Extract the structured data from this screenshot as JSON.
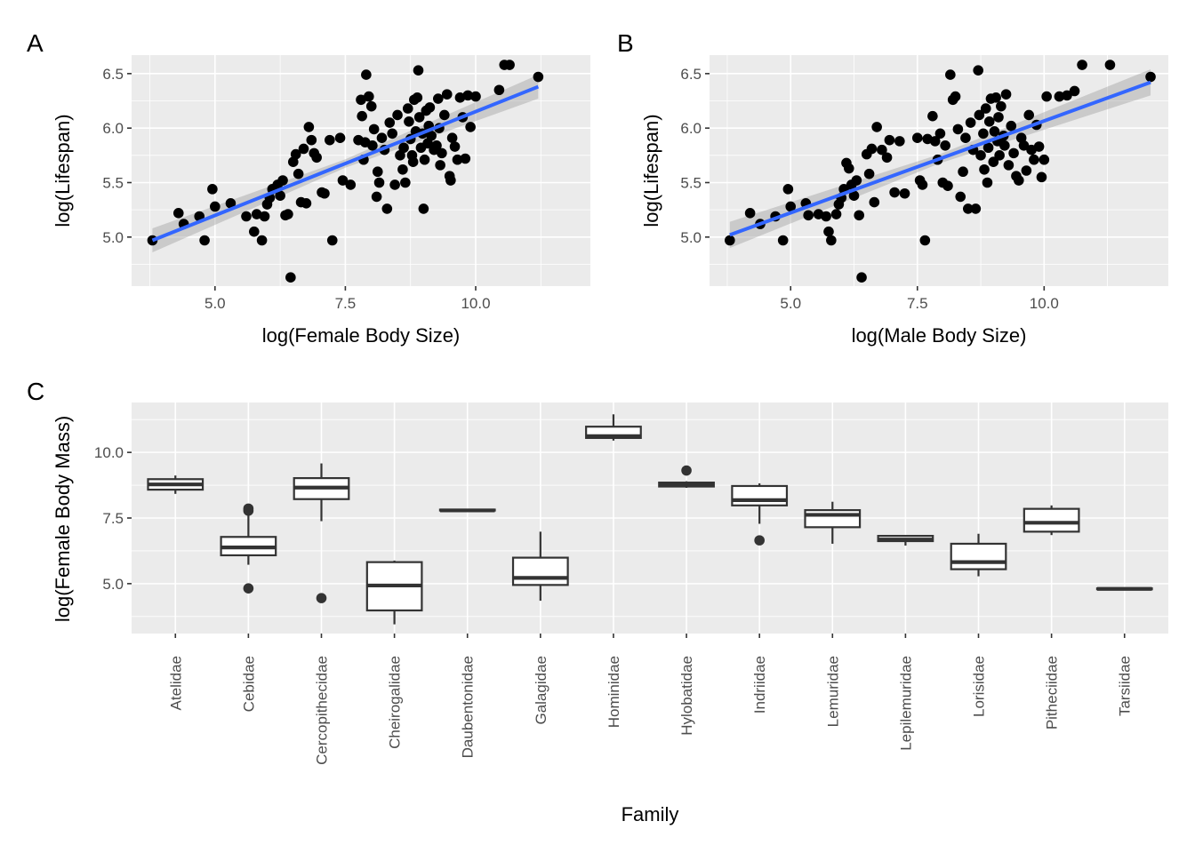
{
  "chart_data": [
    {
      "id": "A",
      "panel_tag": "A",
      "type": "scatter",
      "title": "",
      "xlabel": "log(Female Body Size)",
      "ylabel": "log(Lifespan)",
      "xlim": [
        3.4,
        12.2
      ],
      "ylim": [
        4.55,
        6.67
      ],
      "xticks": [
        5.0,
        7.5,
        10.0
      ],
      "xtick_labels": [
        "5.0",
        "7.5",
        "10.0"
      ],
      "yticks": [
        5.0,
        5.5,
        6.0,
        6.5
      ],
      "ytick_labels": [
        "5.0",
        "5.5",
        "6.0",
        "6.5"
      ],
      "grid": true,
      "fit": {
        "method": "lm",
        "x0": 3.8,
        "y0": 4.97,
        "x1": 11.2,
        "y1": 6.38,
        "se_at_ends": 0.11,
        "color": "#3366ff"
      },
      "points": [
        [
          3.8,
          4.97
        ],
        [
          4.3,
          5.22
        ],
        [
          4.4,
          5.12
        ],
        [
          4.7,
          5.19
        ],
        [
          4.8,
          4.97
        ],
        [
          4.95,
          5.44
        ],
        [
          5.0,
          5.28
        ],
        [
          5.3,
          5.31
        ],
        [
          5.6,
          5.19
        ],
        [
          5.75,
          5.05
        ],
        [
          5.8,
          5.21
        ],
        [
          5.9,
          4.97
        ],
        [
          5.95,
          5.19
        ],
        [
          6.0,
          5.3
        ],
        [
          6.05,
          5.36
        ],
        [
          6.1,
          5.44
        ],
        [
          6.2,
          5.48
        ],
        [
          6.25,
          5.38
        ],
        [
          6.3,
          5.52
        ],
        [
          6.35,
          5.2
        ],
        [
          6.4,
          5.21
        ],
        [
          6.45,
          4.63
        ],
        [
          6.5,
          5.69
        ],
        [
          6.55,
          5.76
        ],
        [
          6.6,
          5.58
        ],
        [
          6.65,
          5.32
        ],
        [
          6.7,
          5.81
        ],
        [
          6.75,
          5.31
        ],
        [
          6.8,
          6.01
        ],
        [
          6.85,
          5.89
        ],
        [
          6.9,
          5.77
        ],
        [
          6.95,
          5.73
        ],
        [
          7.05,
          5.41
        ],
        [
          7.1,
          5.4
        ],
        [
          7.2,
          5.89
        ],
        [
          7.25,
          4.97
        ],
        [
          7.4,
          5.91
        ],
        [
          7.45,
          5.52
        ],
        [
          7.6,
          5.48
        ],
        [
          7.75,
          5.89
        ],
        [
          7.8,
          6.26
        ],
        [
          7.82,
          6.11
        ],
        [
          7.85,
          5.71
        ],
        [
          7.88,
          5.87
        ],
        [
          7.9,
          6.49
        ],
        [
          7.95,
          6.29
        ],
        [
          8.0,
          6.2
        ],
        [
          8.02,
          5.84
        ],
        [
          8.05,
          5.99
        ],
        [
          8.1,
          5.37
        ],
        [
          8.12,
          5.6
        ],
        [
          8.15,
          5.5
        ],
        [
          8.2,
          5.91
        ],
        [
          8.25,
          5.8
        ],
        [
          8.3,
          5.26
        ],
        [
          8.35,
          6.05
        ],
        [
          8.4,
          5.95
        ],
        [
          8.45,
          5.48
        ],
        [
          8.5,
          6.12
        ],
        [
          8.55,
          5.75
        ],
        [
          8.6,
          5.62
        ],
        [
          8.62,
          5.82
        ],
        [
          8.65,
          5.5
        ],
        [
          8.7,
          6.18
        ],
        [
          8.72,
          6.06
        ],
        [
          8.75,
          5.9
        ],
        [
          8.78,
          5.75
        ],
        [
          8.8,
          5.69
        ],
        [
          8.82,
          6.26
        ],
        [
          8.85,
          5.97
        ],
        [
          8.88,
          6.28
        ],
        [
          8.9,
          6.53
        ],
        [
          8.92,
          6.1
        ],
        [
          8.95,
          5.82
        ],
        [
          8.98,
          5.95
        ],
        [
          9.0,
          5.26
        ],
        [
          9.02,
          5.71
        ],
        [
          9.05,
          6.16
        ],
        [
          9.08,
          5.86
        ],
        [
          9.1,
          6.02
        ],
        [
          9.12,
          6.19
        ],
        [
          9.15,
          5.93
        ],
        [
          9.2,
          5.8
        ],
        [
          9.25,
          5.84
        ],
        [
          9.28,
          6.27
        ],
        [
          9.3,
          6.0
        ],
        [
          9.32,
          5.66
        ],
        [
          9.35,
          5.77
        ],
        [
          9.4,
          6.12
        ],
        [
          9.45,
          6.31
        ],
        [
          9.5,
          5.56
        ],
        [
          9.52,
          5.52
        ],
        [
          9.55,
          5.91
        ],
        [
          9.6,
          5.83
        ],
        [
          9.65,
          5.71
        ],
        [
          9.7,
          6.28
        ],
        [
          9.75,
          6.1
        ],
        [
          9.8,
          5.72
        ],
        [
          9.85,
          6.3
        ],
        [
          9.9,
          6.01
        ],
        [
          10.0,
          6.29
        ],
        [
          10.45,
          6.35
        ],
        [
          10.55,
          6.58
        ],
        [
          10.65,
          6.58
        ],
        [
          11.2,
          6.47
        ]
      ]
    },
    {
      "id": "B",
      "panel_tag": "B",
      "type": "scatter",
      "title": "",
      "xlabel": "log(Male Body Size)",
      "ylabel": "log(Lifespan)",
      "xlim": [
        3.4,
        12.45
      ],
      "ylim": [
        4.55,
        6.67
      ],
      "xticks": [
        5.0,
        7.5,
        10.0
      ],
      "xtick_labels": [
        "5.0",
        "7.5",
        "10.0"
      ],
      "yticks": [
        5.0,
        5.5,
        6.0,
        6.5
      ],
      "ytick_labels": [
        "5.0",
        "5.5",
        "6.0",
        "6.5"
      ],
      "grid": true,
      "fit": {
        "method": "lm",
        "x0": 3.8,
        "y0": 5.02,
        "x1": 12.1,
        "y1": 6.42,
        "se_at_ends": 0.12,
        "color": "#3366ff"
      },
      "points": [
        [
          3.8,
          4.97
        ],
        [
          4.2,
          5.22
        ],
        [
          4.4,
          5.12
        ],
        [
          4.7,
          5.19
        ],
        [
          4.85,
          4.97
        ],
        [
          4.95,
          5.44
        ],
        [
          5.0,
          5.28
        ],
        [
          5.3,
          5.31
        ],
        [
          5.35,
          5.2
        ],
        [
          5.55,
          5.21
        ],
        [
          5.7,
          5.19
        ],
        [
          5.75,
          5.05
        ],
        [
          5.8,
          4.97
        ],
        [
          5.9,
          5.21
        ],
        [
          5.95,
          5.3
        ],
        [
          6.0,
          5.36
        ],
        [
          6.05,
          5.44
        ],
        [
          6.1,
          5.68
        ],
        [
          6.15,
          5.63
        ],
        [
          6.2,
          5.48
        ],
        [
          6.25,
          5.38
        ],
        [
          6.3,
          5.52
        ],
        [
          6.35,
          5.2
        ],
        [
          6.4,
          4.63
        ],
        [
          6.5,
          5.76
        ],
        [
          6.55,
          5.58
        ],
        [
          6.6,
          5.81
        ],
        [
          6.65,
          5.32
        ],
        [
          6.7,
          6.01
        ],
        [
          6.8,
          5.8
        ],
        [
          6.9,
          5.73
        ],
        [
          6.95,
          5.89
        ],
        [
          7.05,
          5.41
        ],
        [
          7.15,
          5.88
        ],
        [
          7.25,
          5.4
        ],
        [
          7.5,
          5.91
        ],
        [
          7.55,
          5.52
        ],
        [
          7.6,
          5.48
        ],
        [
          7.65,
          4.97
        ],
        [
          7.7,
          5.9
        ],
        [
          7.8,
          6.11
        ],
        [
          7.85,
          5.88
        ],
        [
          7.9,
          5.71
        ],
        [
          7.95,
          5.95
        ],
        [
          8.0,
          5.5
        ],
        [
          8.05,
          5.84
        ],
        [
          8.1,
          5.47
        ],
        [
          8.15,
          6.49
        ],
        [
          8.2,
          6.26
        ],
        [
          8.25,
          6.29
        ],
        [
          8.3,
          5.99
        ],
        [
          8.35,
          5.37
        ],
        [
          8.4,
          5.6
        ],
        [
          8.45,
          5.91
        ],
        [
          8.5,
          5.26
        ],
        [
          8.55,
          6.05
        ],
        [
          8.6,
          5.8
        ],
        [
          8.65,
          5.26
        ],
        [
          8.7,
          6.53
        ],
        [
          8.72,
          6.12
        ],
        [
          8.75,
          5.75
        ],
        [
          8.8,
          5.95
        ],
        [
          8.82,
          5.62
        ],
        [
          8.85,
          6.18
        ],
        [
          8.88,
          5.5
        ],
        [
          8.9,
          5.82
        ],
        [
          8.92,
          6.06
        ],
        [
          8.95,
          6.27
        ],
        [
          9.0,
          5.69
        ],
        [
          9.02,
          5.97
        ],
        [
          9.05,
          6.28
        ],
        [
          9.08,
          5.88
        ],
        [
          9.1,
          6.1
        ],
        [
          9.12,
          5.75
        ],
        [
          9.15,
          6.2
        ],
        [
          9.2,
          5.93
        ],
        [
          9.22,
          5.84
        ],
        [
          9.25,
          6.31
        ],
        [
          9.3,
          5.66
        ],
        [
          9.35,
          6.02
        ],
        [
          9.4,
          5.77
        ],
        [
          9.45,
          5.56
        ],
        [
          9.5,
          5.52
        ],
        [
          9.55,
          5.91
        ],
        [
          9.6,
          5.84
        ],
        [
          9.65,
          5.61
        ],
        [
          9.7,
          6.12
        ],
        [
          9.75,
          5.8
        ],
        [
          9.8,
          5.71
        ],
        [
          9.85,
          6.03
        ],
        [
          9.9,
          5.83
        ],
        [
          9.95,
          5.55
        ],
        [
          10.0,
          5.71
        ],
        [
          10.05,
          6.29
        ],
        [
          10.3,
          6.29
        ],
        [
          10.45,
          6.3
        ],
        [
          10.6,
          6.34
        ],
        [
          10.75,
          6.58
        ],
        [
          11.3,
          6.58
        ],
        [
          12.1,
          6.47
        ]
      ]
    },
    {
      "id": "C",
      "panel_tag": "C",
      "type": "boxplot",
      "title": "",
      "xlabel": "Family",
      "ylabel": "log(Female Body Mass)",
      "ylim": [
        3.1,
        11.9
      ],
      "yticks": [
        5.0,
        7.5,
        10.0
      ],
      "ytick_labels": [
        "5.0",
        "7.5",
        "10.0"
      ],
      "grid": true,
      "categories": [
        "Atelidae",
        "Cebidae",
        "Cercopithecidae",
        "Cheirogalidae",
        "Daubentonidae",
        "Galagidae",
        "Hominidae",
        "Hylobatidae",
        "Indriidae",
        "Lemuridae",
        "Lepilemuridae",
        "Lorisidae",
        "Pitheciidae",
        "Tarsiidae"
      ],
      "boxes": [
        {
          "family": "Atelidae",
          "lower_whisker": 8.42,
          "q1": 8.58,
          "median": 8.78,
          "q3": 8.98,
          "upper_whisker": 9.12,
          "outliers": []
        },
        {
          "family": "Cebidae",
          "lower_whisker": 5.72,
          "q1": 6.08,
          "median": 6.38,
          "q3": 6.78,
          "upper_whisker": 7.72,
          "outliers": [
            7.86,
            7.78,
            4.82
          ]
        },
        {
          "family": "Cercopithecidae",
          "lower_whisker": 7.38,
          "q1": 8.22,
          "median": 8.66,
          "q3": 9.02,
          "upper_whisker": 9.58,
          "outliers": [
            4.45
          ]
        },
        {
          "family": "Cheirogalidae",
          "lower_whisker": 3.45,
          "q1": 3.98,
          "median": 4.93,
          "q3": 5.82,
          "upper_whisker": 5.88,
          "outliers": []
        },
        {
          "family": "Daubentonidae",
          "lower_whisker": 7.79,
          "q1": 7.79,
          "median": 7.79,
          "q3": 7.82,
          "upper_whisker": 7.82,
          "outliers": []
        },
        {
          "family": "Galagidae",
          "lower_whisker": 4.35,
          "q1": 4.95,
          "median": 5.22,
          "q3": 5.99,
          "upper_whisker": 6.98,
          "outliers": []
        },
        {
          "family": "Hominidae",
          "lower_whisker": 10.45,
          "q1": 10.55,
          "median": 10.62,
          "q3": 10.98,
          "upper_whisker": 11.45,
          "outliers": []
        },
        {
          "family": "Hylobatidae",
          "lower_whisker": 8.65,
          "q1": 8.7,
          "median": 8.78,
          "q3": 8.85,
          "upper_whisker": 8.9,
          "outliers": [
            9.31
          ]
        },
        {
          "family": "Indriidae",
          "lower_whisker": 7.28,
          "q1": 7.98,
          "median": 8.18,
          "q3": 8.72,
          "upper_whisker": 8.82,
          "outliers": [
            6.65
          ]
        },
        {
          "family": "Lemuridae",
          "lower_whisker": 6.52,
          "q1": 7.15,
          "median": 7.62,
          "q3": 7.8,
          "upper_whisker": 8.12,
          "outliers": []
        },
        {
          "family": "Lepilemuridae",
          "lower_whisker": 6.45,
          "q1": 6.62,
          "median": 6.68,
          "q3": 6.82,
          "upper_whisker": 6.82,
          "outliers": []
        },
        {
          "family": "Lorisidae",
          "lower_whisker": 5.28,
          "q1": 5.55,
          "median": 5.82,
          "q3": 6.52,
          "upper_whisker": 6.9,
          "outliers": []
        },
        {
          "family": "Pitheciidae",
          "lower_whisker": 6.85,
          "q1": 6.98,
          "median": 7.32,
          "q3": 7.85,
          "upper_whisker": 7.98,
          "outliers": []
        },
        {
          "family": "Tarsiidae",
          "lower_whisker": 4.8,
          "q1": 4.8,
          "median": 4.8,
          "q3": 4.82,
          "upper_whisker": 4.82,
          "outliers": []
        }
      ]
    }
  ]
}
